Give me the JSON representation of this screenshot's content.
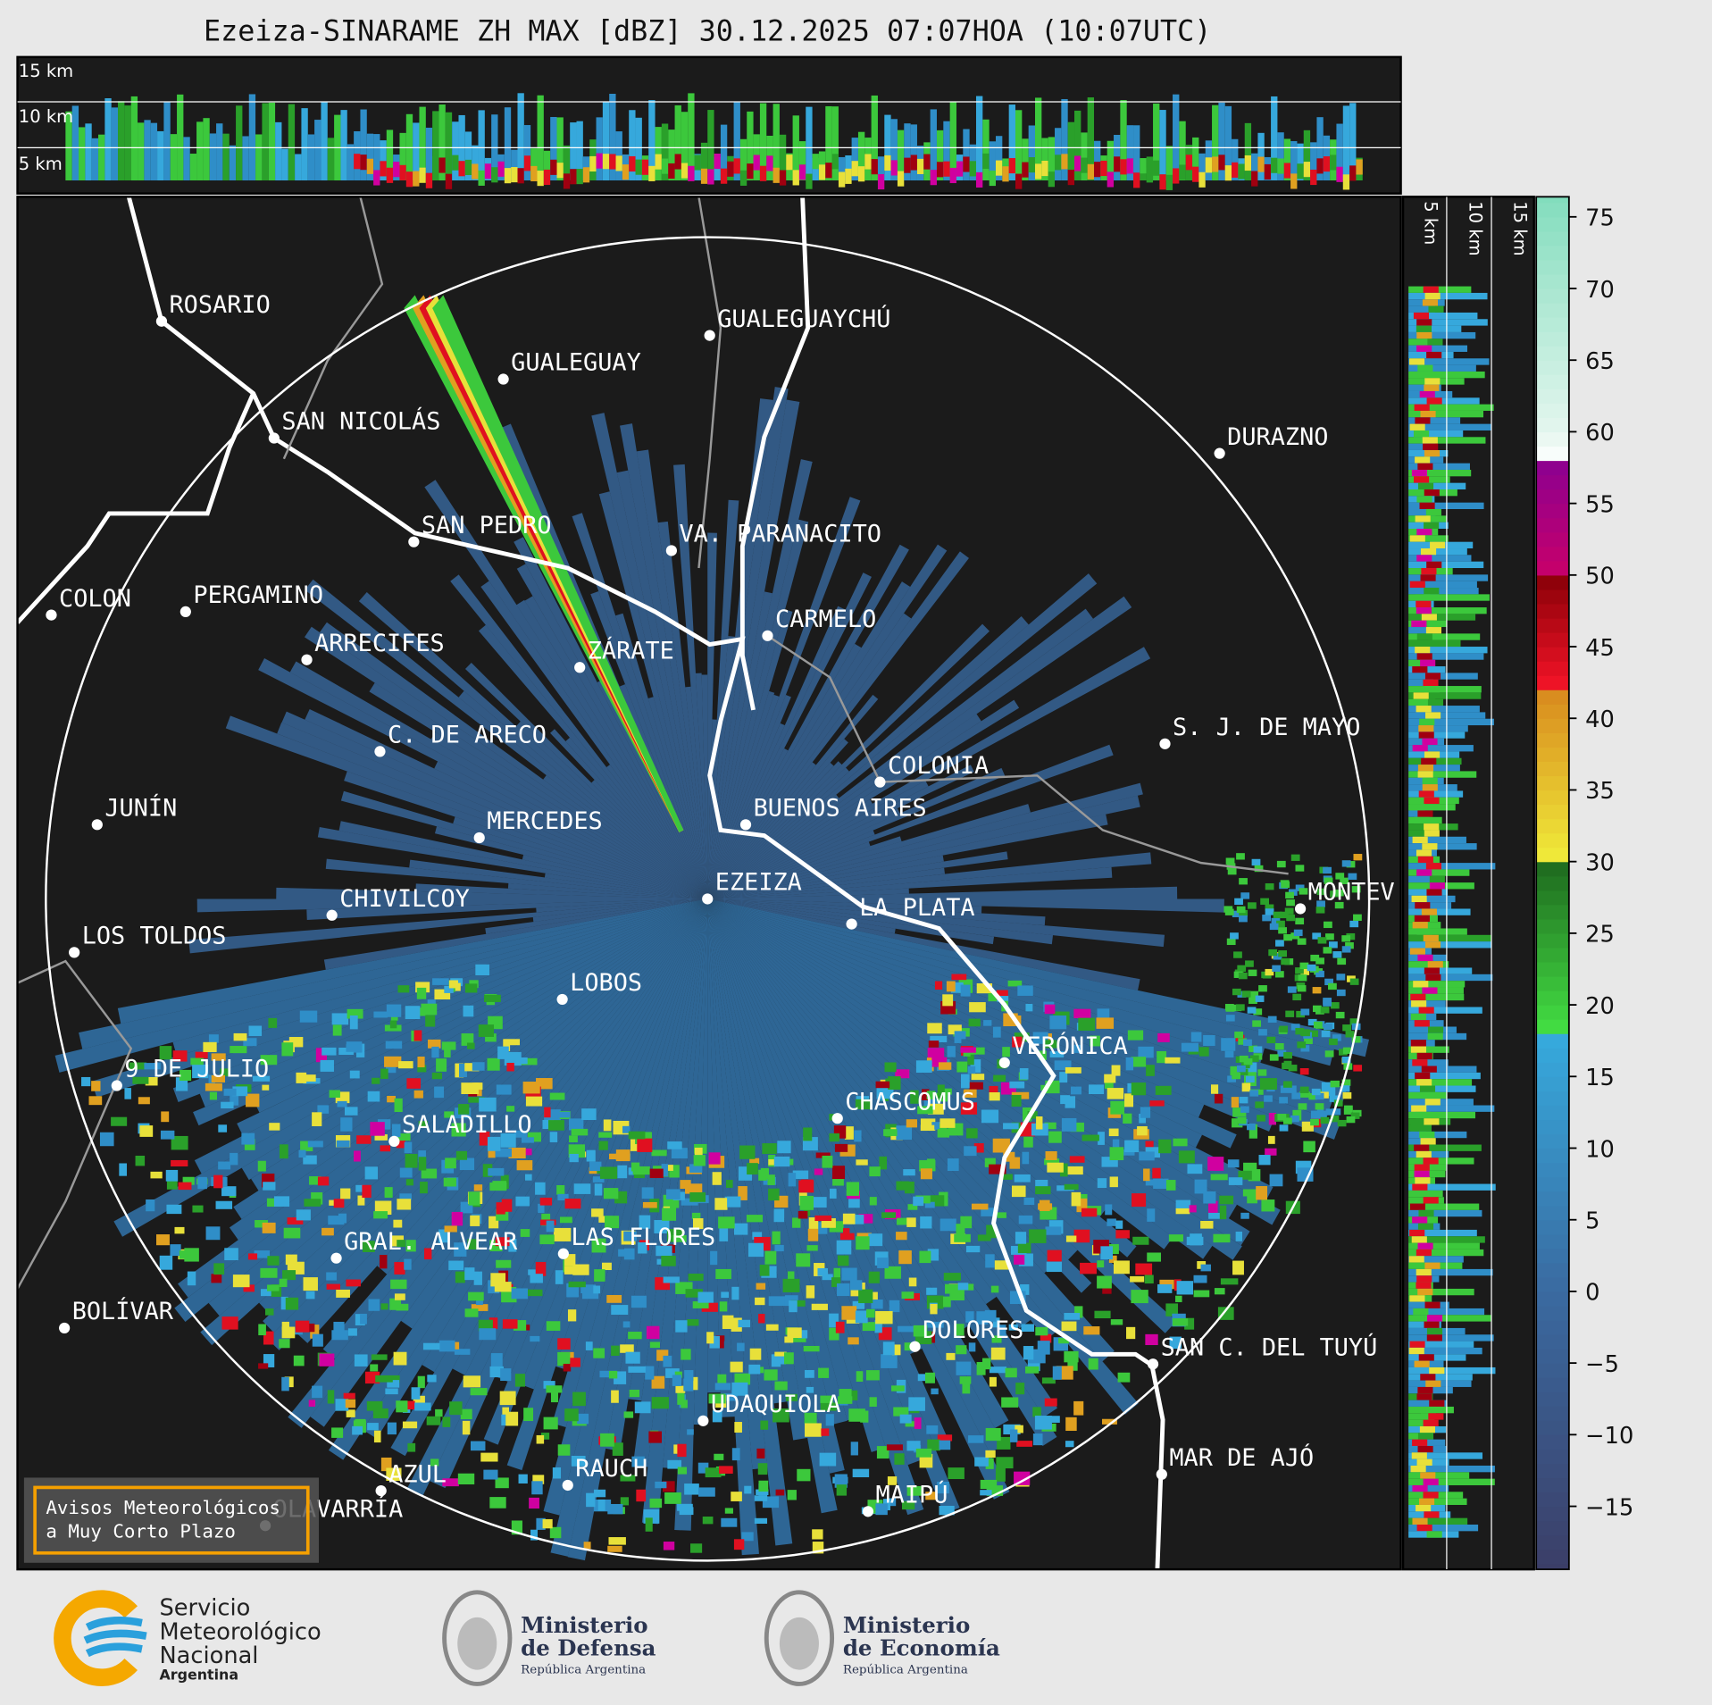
{
  "title": "Ezeiza-SINARAME ZH MAX [dBZ] 30.12.2025 07:07HOA (10:07UTC)",
  "top_panel": {
    "height_labels": [
      "15 km",
      "10 km",
      "5 km"
    ]
  },
  "side_panel": {
    "height_labels": [
      "5 km",
      "10 km",
      "15 km"
    ]
  },
  "cities": [
    "ROSARIO",
    "GUALEGUAYCHÚ",
    "GUALEGUAY",
    "SAN NICOLÁS",
    "DURAZNO",
    "SAN PEDRO",
    "VA. PARANACITO",
    "COLON",
    "PERGAMINO",
    "CARMELO",
    "ARRECIFES",
    "ZÁRATE",
    "C. DE ARECO",
    "S. J. DE MAYO",
    "COLONIA",
    "BUENOS AIRES",
    "JUNÍN",
    "MERCEDES",
    "EZEIZA",
    "MONTEV",
    "CHIVILCOY",
    "LA PLATA",
    "LOS TOLDOS",
    "LOBOS",
    "VERÓNICA",
    "9 DE JULIO",
    "CHASCOMUS",
    "SALADILLO",
    "GRAL. ALVEAR",
    "LAS FLORES",
    "BOLÍVAR",
    "DOLORES",
    "SAN C. DEL TUYÚ",
    "UDAQUIOLA",
    "MAR DE AJÓ",
    "AZUL",
    "RAUCH",
    "OLAVARRÍA",
    "MAIPÚ"
  ],
  "warning_box": [
    "Avisos Meteorológicos",
    "a Muy Corto Plazo"
  ],
  "colorbar": {
    "lim": [
      -19.4,
      76.4
    ],
    "ticks": [
      {
        "value": -15,
        "label": "−15"
      },
      {
        "value": -10,
        "label": "−10"
      },
      {
        "value": -5,
        "label": "−5"
      },
      0,
      5,
      10,
      15,
      20,
      25,
      30,
      35,
      40,
      45,
      50,
      55,
      60,
      65,
      70,
      75
    ]
  },
  "logos": {
    "smn": [
      "Servicio",
      "Meteorológico",
      "Nacional",
      "Argentina"
    ],
    "defensa": [
      "Ministerio",
      "de Defensa",
      "República Argentina"
    ],
    "economia": [
      "Ministerio",
      "de Economía",
      "República Argentina"
    ]
  }
}
